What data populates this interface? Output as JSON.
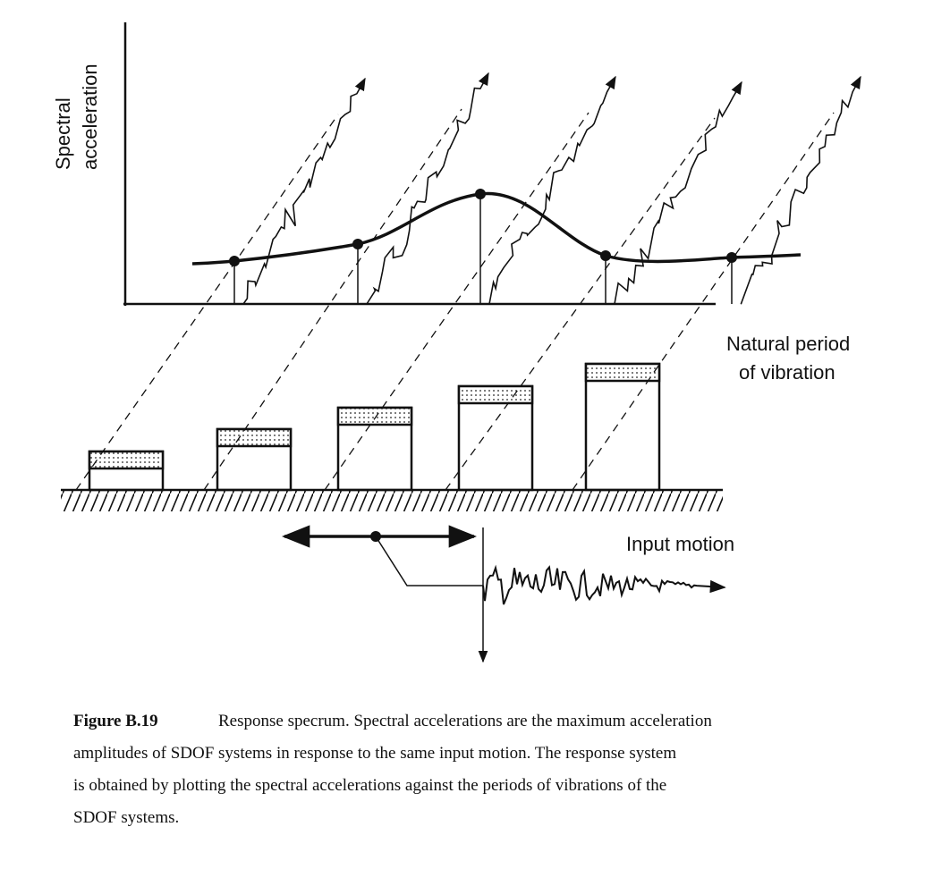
{
  "figure": {
    "y_axis_label": [
      "Spectral",
      "acceleration"
    ],
    "x_axis_label": [
      "Natural period",
      "of vibration"
    ],
    "input_label": "Input motion",
    "caption": {
      "label": "Figure B.19",
      "lines": [
        "Response specrum. Spectral accelerations are the maximum acceleration",
        "amplitudes of SDOF systems in response to the same input motion. The response system",
        "is obtained by plotting the spectral accelerations against the periods of vibrations of the",
        "SDOF systems."
      ]
    }
  }
}
